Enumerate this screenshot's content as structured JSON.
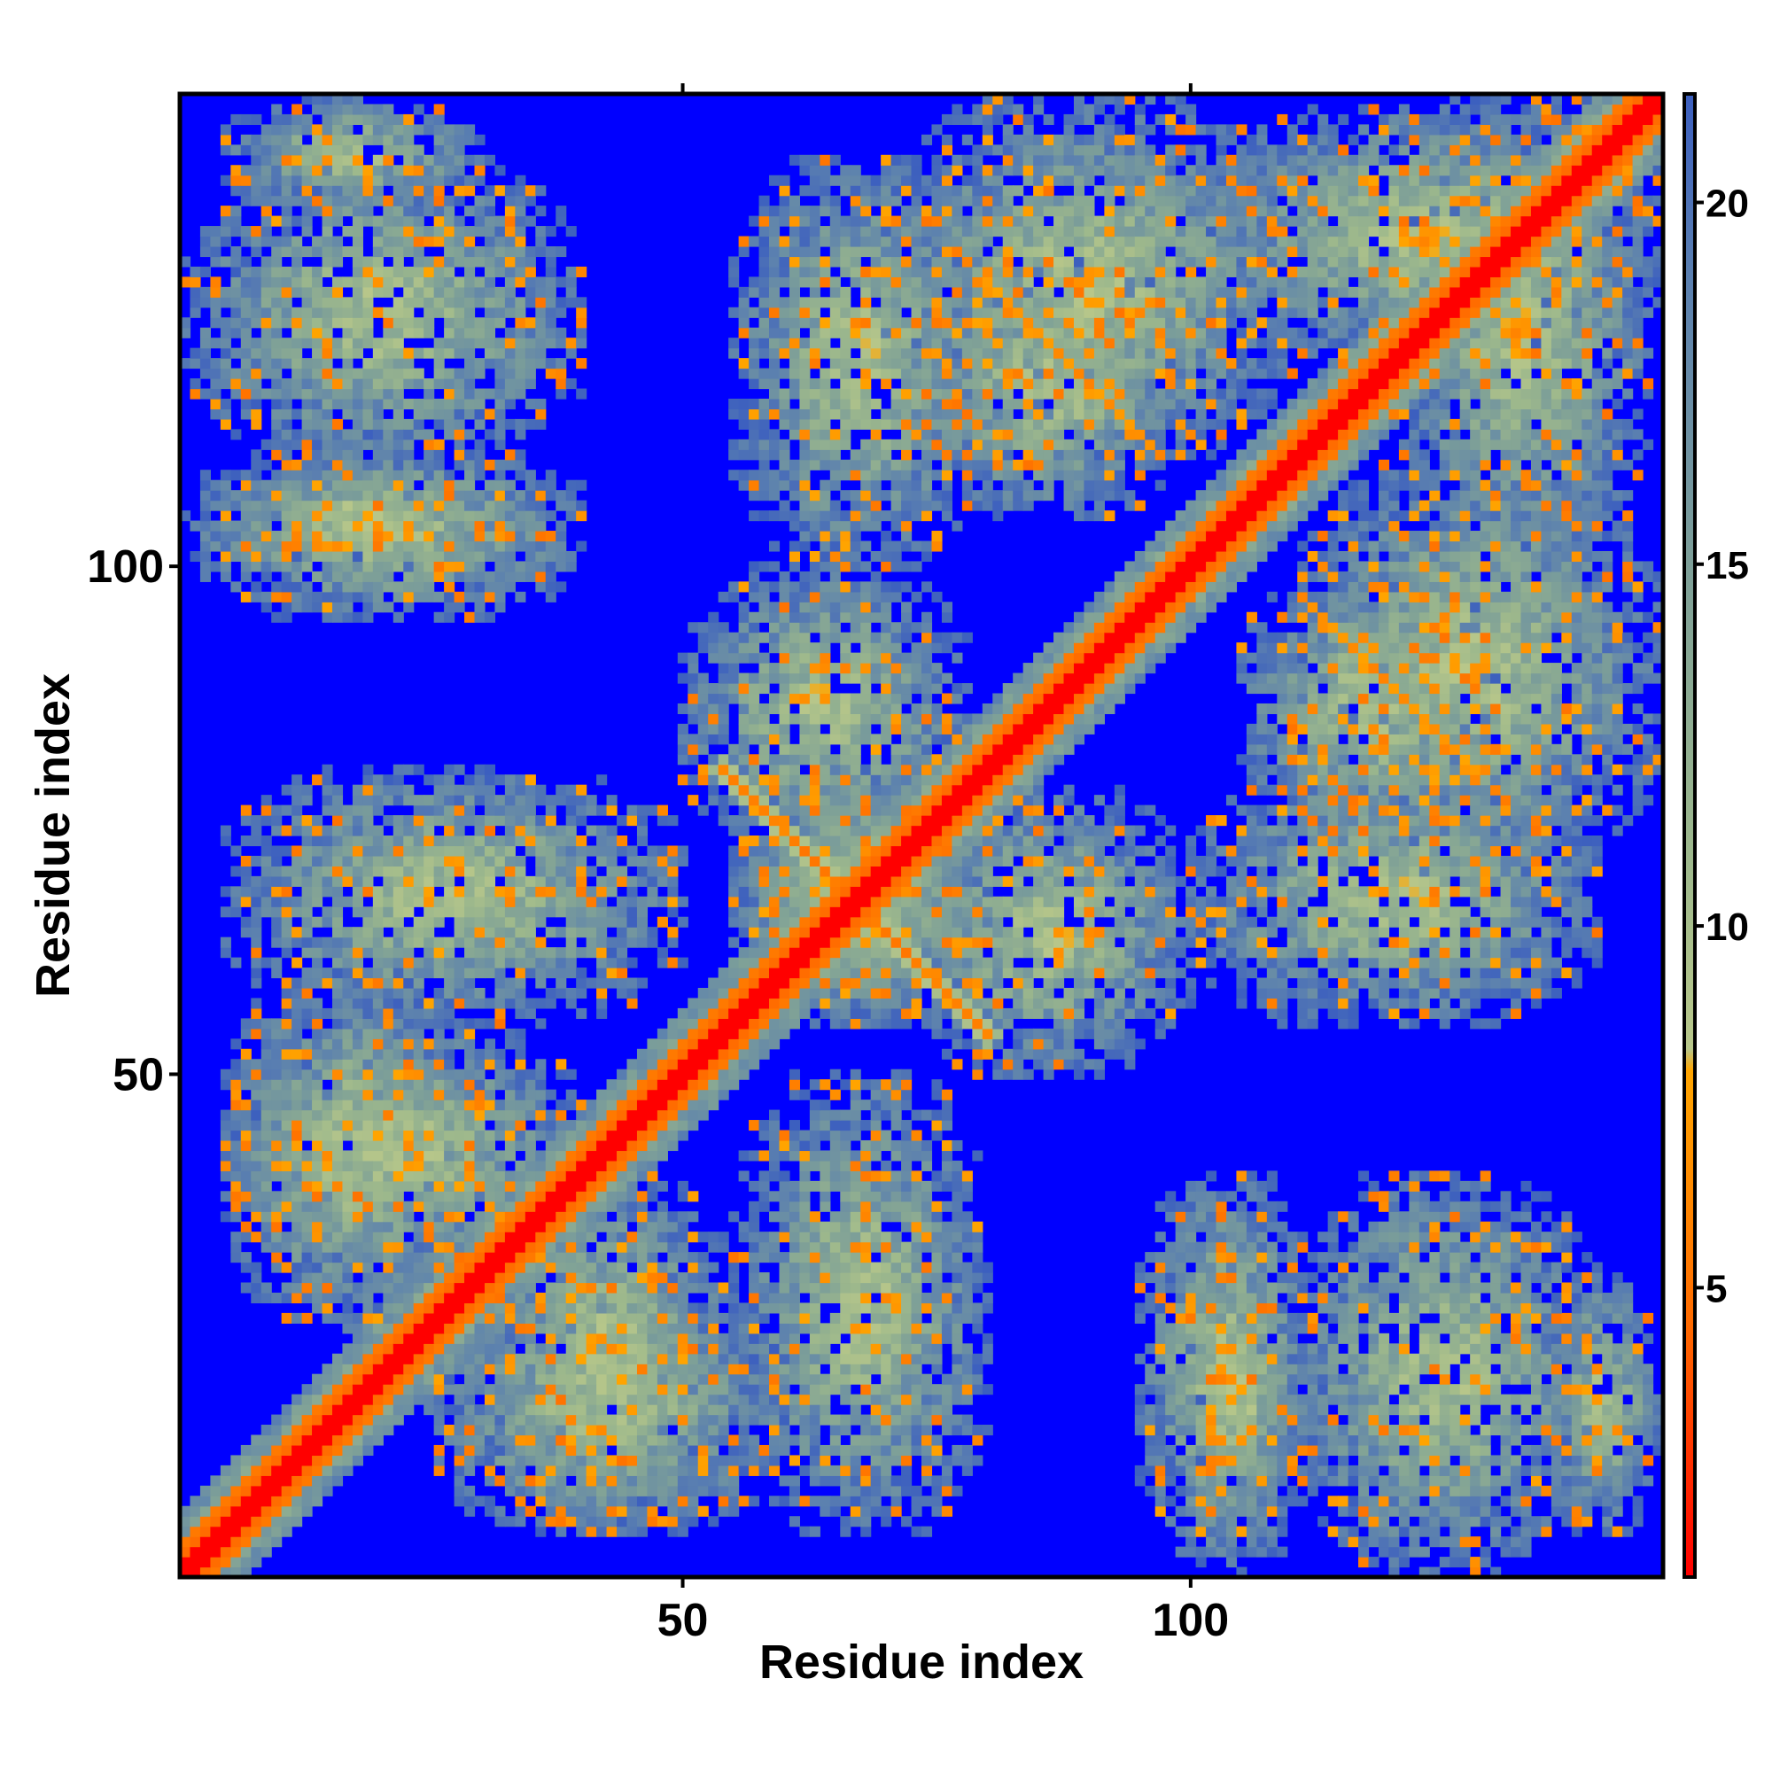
{
  "chart_data": {
    "type": "heatmap",
    "title": "",
    "xlabel": "Residue index",
    "ylabel": "Residue index",
    "n_residues": 146,
    "xlim": [
      1,
      146
    ],
    "ylim": [
      1,
      146
    ],
    "x_ticks": [
      50,
      100
    ],
    "y_ticks": [
      50,
      100
    ],
    "x_tick_labels": [
      "50",
      "100"
    ],
    "y_tick_labels": [
      "50",
      "100"
    ],
    "colorbar": {
      "range": [
        1,
        21.5
      ],
      "ticks": [
        5,
        10,
        15,
        20
      ],
      "tick_labels": [
        "5",
        "10",
        "15",
        "20"
      ],
      "stops": [
        {
          "value": 1,
          "color": "#ff0000"
        },
        {
          "value": 4.5,
          "color": "#ff6a00"
        },
        {
          "value": 8,
          "color": "#ffa500"
        },
        {
          "value": 8.3,
          "color": "#b8c78a"
        },
        {
          "value": 11,
          "color": "#9db88c"
        },
        {
          "value": 15,
          "color": "#7d9f98"
        },
        {
          "value": 19,
          "color": "#5a7fb0"
        },
        {
          "value": 21.5,
          "color": "#3c5fbf"
        }
      ],
      "cutoff_color": "#0000ff"
    },
    "grid": false,
    "legend": "colorbar-right",
    "description": "Symmetric residue-residue distance map; diagonal has values near 1 (red), distant pairs saturate at >20 (blue).",
    "contact_regions": [
      {
        "i": [
          1,
          30
        ],
        "j": [
          1,
          30
        ],
        "band": true,
        "note": "main diagonal"
      },
      {
        "i": [
          5,
          30
        ],
        "j": [
          135,
          146
        ]
      },
      {
        "i": [
          5,
          30
        ],
        "j": [
          100,
          110
        ]
      },
      {
        "i": [
          5,
          50
        ],
        "j": [
          55,
          80
        ]
      },
      {
        "i": [
          5,
          40
        ],
        "j": [
          30,
          55
        ]
      },
      {
        "i": [
          25,
          60
        ],
        "j": [
          5,
          30
        ]
      },
      {
        "i": [
          55,
          80
        ],
        "j": [
          55,
          80
        ],
        "note": "cross-shaped antiparallel contact"
      },
      {
        "i": [
          50,
          78
        ],
        "j": [
          72,
          100
        ]
      },
      {
        "i": [
          70,
          110
        ],
        "j": [
          110,
          146
        ]
      },
      {
        "i": [
          72,
          100
        ],
        "j": [
          105,
          130
        ]
      },
      {
        "i": [
          95,
          112
        ],
        "j": [
          1,
          40
        ]
      },
      {
        "i": [
          110,
          140
        ],
        "j": [
          1,
          40
        ]
      },
      {
        "i": [
          120,
          145
        ],
        "j": [
          100,
          146
        ]
      },
      {
        "i": [
          100,
          140
        ],
        "j": [
          55,
          80
        ]
      }
    ]
  }
}
